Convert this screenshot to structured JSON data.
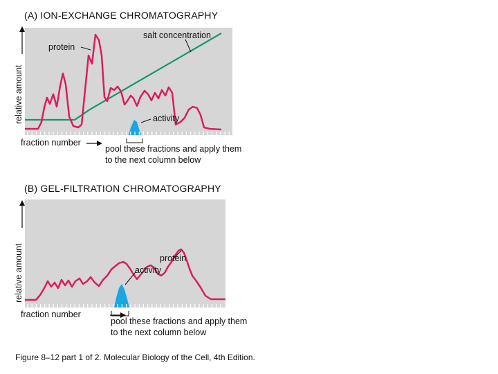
{
  "panel_a": {
    "title": "(A)  ION-EXCHANGE CHROMATOGRAPHY",
    "y_axis_label": "relative amount",
    "x_axis_label": "fraction number",
    "label_protein": "protein",
    "label_salt": "salt concentration",
    "label_activity": "activity",
    "pool_note_line1": "pool these fractions and apply them",
    "pool_note_line2": "to the next column below"
  },
  "panel_b": {
    "title": "(B)  GEL-FILTRATION CHROMATOGRAPHY",
    "y_axis_label": "relative amount",
    "x_axis_label": "fraction number",
    "label_protein": "protein",
    "label_activity": "activity",
    "pool_note_line1": "pool these fractions and apply them",
    "pool_note_line2": "to the next column below"
  },
  "caption": "Figure 8–12 part 1 of 2. Molecular Biology of the Cell, 4th Edition.",
  "colors": {
    "panel_bg": "#d6d6d6",
    "protein": "#d81e5b",
    "salt": "#15956f",
    "activity": "#1aa6e0"
  }
}
